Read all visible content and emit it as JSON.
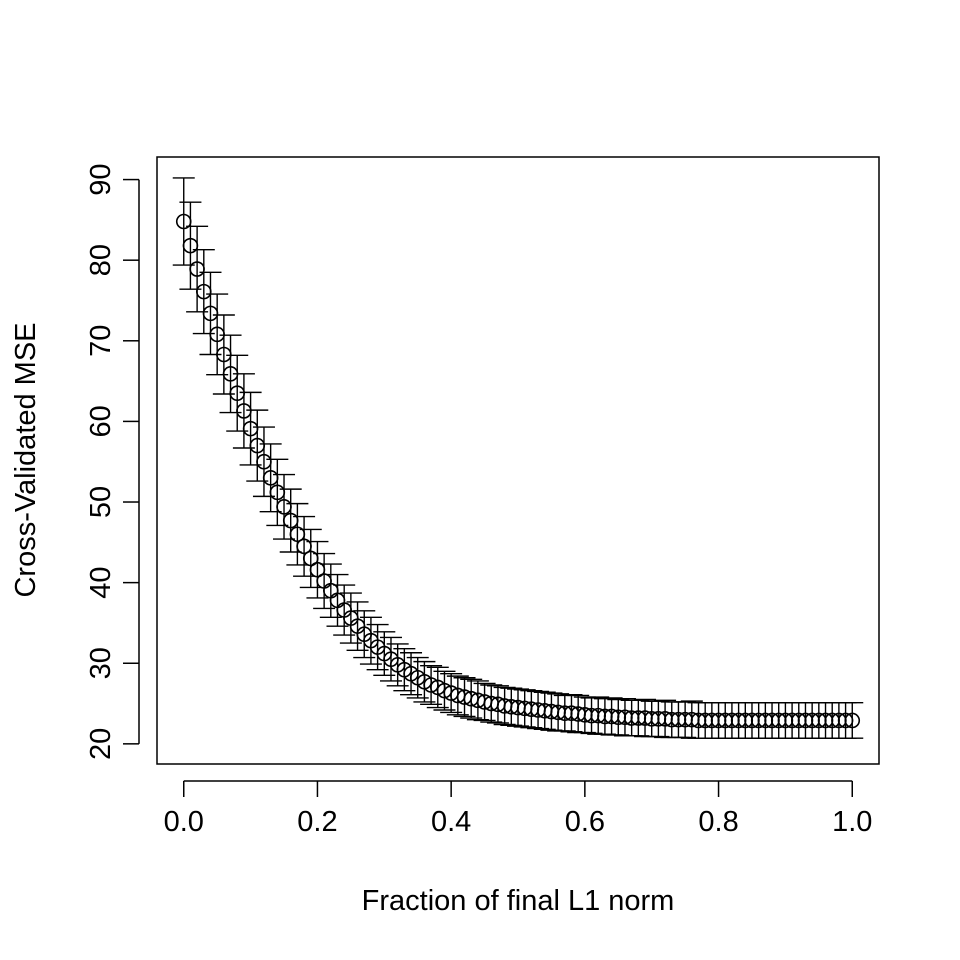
{
  "chart_data": {
    "type": "scatter",
    "title": "",
    "xlabel": "Fraction of final L1 norm",
    "ylabel": "Cross-Validated MSE",
    "xlim": [
      -0.04,
      1.04
    ],
    "ylim": [
      17.5,
      92.8
    ],
    "x_ticks": [
      "0.0",
      "0.2",
      "0.4",
      "0.6",
      "0.8",
      "1.0"
    ],
    "y_ticks": [
      "20",
      "30",
      "40",
      "50",
      "60",
      "70",
      "80",
      "90"
    ],
    "grid": false,
    "legend": "none",
    "marker": "open-circle",
    "error_bars": true,
    "x": [
      0.0,
      0.01,
      0.02,
      0.03,
      0.04,
      0.05,
      0.06,
      0.07,
      0.08,
      0.09,
      0.1,
      0.11,
      0.12,
      0.13,
      0.14,
      0.15,
      0.16,
      0.17,
      0.18,
      0.19,
      0.2,
      0.21,
      0.22,
      0.23,
      0.24,
      0.25,
      0.26,
      0.27,
      0.28,
      0.29,
      0.3,
      0.31,
      0.32,
      0.33,
      0.34,
      0.35,
      0.36,
      0.37,
      0.38,
      0.39,
      0.4,
      0.41,
      0.42,
      0.43,
      0.44,
      0.45,
      0.46,
      0.47,
      0.48,
      0.49,
      0.5,
      0.51,
      0.52,
      0.53,
      0.54,
      0.55,
      0.56,
      0.57,
      0.58,
      0.59,
      0.6,
      0.61,
      0.62,
      0.63,
      0.64,
      0.65,
      0.66,
      0.67,
      0.68,
      0.69,
      0.7,
      0.71,
      0.72,
      0.73,
      0.74,
      0.75,
      0.76,
      0.77,
      0.78,
      0.79,
      0.8,
      0.81,
      0.82,
      0.83,
      0.84,
      0.85,
      0.86,
      0.87,
      0.88,
      0.89,
      0.9,
      0.91,
      0.92,
      0.93,
      0.94,
      0.95,
      0.96,
      0.97,
      0.98,
      0.99,
      1.0
    ],
    "y": [
      84.8,
      81.8,
      78.9,
      76.1,
      73.4,
      70.8,
      68.3,
      65.9,
      63.5,
      61.3,
      59.1,
      57.0,
      55.0,
      53.0,
      51.2,
      49.4,
      47.7,
      46.0,
      44.5,
      43.0,
      41.6,
      40.2,
      39.0,
      37.8,
      36.6,
      35.6,
      34.6,
      33.6,
      32.8,
      32.0,
      31.2,
      30.5,
      29.8,
      29.2,
      28.7,
      28.2,
      27.7,
      27.3,
      27.0,
      26.6,
      26.3,
      26.0,
      25.8,
      25.6,
      25.4,
      25.2,
      25.0,
      24.9,
      24.7,
      24.6,
      24.5,
      24.4,
      24.3,
      24.2,
      24.1,
      24.0,
      23.9,
      23.8,
      23.8,
      23.7,
      23.6,
      23.5,
      23.5,
      23.4,
      23.4,
      23.3,
      23.3,
      23.2,
      23.2,
      23.2,
      23.1,
      23.1,
      23.1,
      23.0,
      23.0,
      23.0,
      23.0,
      22.9,
      22.9,
      22.9,
      22.9,
      22.9,
      22.9,
      22.9,
      22.9,
      22.9,
      22.9,
      22.9,
      22.9,
      22.9,
      22.9,
      22.9,
      22.9,
      22.9,
      22.9,
      22.9,
      22.9,
      22.9,
      22.9,
      22.9,
      22.9
    ],
    "error_low": [
      79.4,
      76.4,
      73.6,
      70.9,
      68.3,
      65.8,
      63.4,
      61.1,
      58.8,
      56.7,
      54.6,
      52.6,
      50.7,
      48.8,
      47.1,
      45.4,
      43.8,
      42.2,
      40.8,
      39.4,
      38.1,
      36.8,
      35.7,
      34.6,
      33.5,
      32.5,
      31.6,
      30.7,
      29.9,
      29.2,
      28.5,
      27.8,
      27.2,
      26.6,
      26.1,
      25.7,
      25.2,
      24.9,
      24.5,
      24.2,
      23.9,
      23.6,
      23.4,
      23.2,
      23.0,
      22.9,
      22.7,
      22.6,
      22.4,
      22.3,
      22.2,
      22.1,
      22.0,
      21.9,
      21.8,
      21.7,
      21.6,
      21.6,
      21.5,
      21.4,
      21.4,
      21.3,
      21.2,
      21.2,
      21.1,
      21.1,
      21.0,
      21.0,
      21.0,
      20.9,
      20.9,
      20.9,
      20.8,
      20.8,
      20.8,
      20.8,
      20.7,
      20.7,
      20.7,
      20.7,
      20.7,
      20.7,
      20.7,
      20.7,
      20.7,
      20.7,
      20.7,
      20.7,
      20.7,
      20.7,
      20.7,
      20.7,
      20.7,
      20.7,
      20.7,
      20.7,
      20.7,
      20.7,
      20.7,
      20.7,
      20.7
    ],
    "error_high": [
      90.2,
      87.2,
      84.2,
      81.3,
      78.5,
      75.8,
      73.2,
      70.7,
      68.2,
      65.9,
      63.6,
      61.4,
      59.3,
      57.2,
      55.3,
      53.4,
      51.6,
      49.8,
      48.2,
      46.6,
      45.1,
      43.6,
      42.3,
      41.0,
      39.7,
      38.7,
      37.6,
      36.5,
      35.7,
      34.8,
      33.9,
      33.2,
      32.4,
      31.8,
      31.3,
      30.7,
      30.2,
      29.7,
      29.5,
      29.0,
      28.7,
      28.4,
      28.2,
      28.0,
      27.8,
      27.5,
      27.3,
      27.2,
      27.0,
      26.9,
      26.8,
      26.7,
      26.6,
      26.5,
      26.4,
      26.3,
      26.2,
      26.0,
      26.1,
      26.0,
      25.8,
      25.7,
      25.8,
      25.6,
      25.7,
      25.5,
      25.6,
      25.4,
      25.4,
      25.5,
      25.3,
      25.3,
      25.4,
      25.2,
      25.2,
      25.2,
      25.3,
      25.1,
      25.1,
      25.1,
      25.1,
      25.1,
      25.1,
      25.1,
      25.1,
      25.1,
      25.1,
      25.1,
      25.1,
      25.1,
      25.1,
      25.1,
      25.1,
      25.1,
      25.1,
      25.1,
      25.1,
      25.1,
      25.1,
      25.1,
      25.1
    ]
  }
}
